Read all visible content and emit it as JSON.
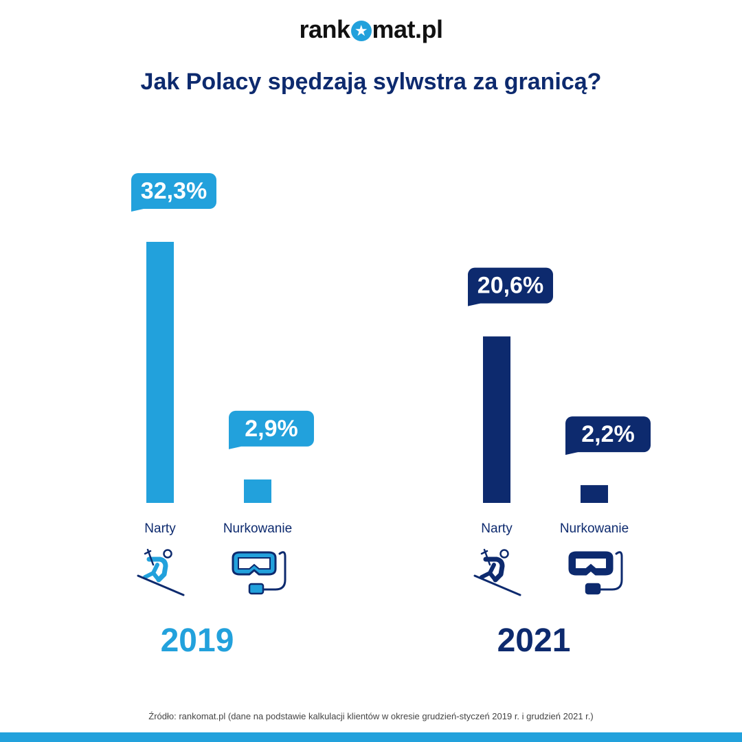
{
  "brand": {
    "name_pre": "rank",
    "name_post": "mat.pl"
  },
  "title": "Jak Polacy spędzają sylwstra za granicą?",
  "colors": {
    "light_blue": "#22a1dc",
    "navy": "#0d2a6e"
  },
  "chart_data": {
    "type": "bar",
    "title": "Jak Polacy spędzają sylwstra za granicą?",
    "categories": [
      "Narty",
      "Nurkowanie"
    ],
    "groups": [
      {
        "year": "2019",
        "color": "#22a1dc",
        "bars": [
          {
            "label": "Narty",
            "value": 32.3,
            "display": "32,3%",
            "icon": "skier-icon"
          },
          {
            "label": "Nurkowanie",
            "value": 2.9,
            "display": "2,9%",
            "icon": "diving-mask-icon"
          }
        ]
      },
      {
        "year": "2021",
        "color": "#0d2a6e",
        "bars": [
          {
            "label": "Narty",
            "value": 20.6,
            "display": "20,6%",
            "icon": "skier-icon"
          },
          {
            "label": "Nurkowanie",
            "value": 2.2,
            "display": "2,2%",
            "icon": "diving-mask-icon"
          }
        ]
      }
    ],
    "grid": false,
    "legend": "none"
  },
  "source": "Źródło: rankomat.pl (dane na podstawie kalkulacji klientów w okresie grudzień-styczeń 2019 r. i grudzień 2021 r.)"
}
